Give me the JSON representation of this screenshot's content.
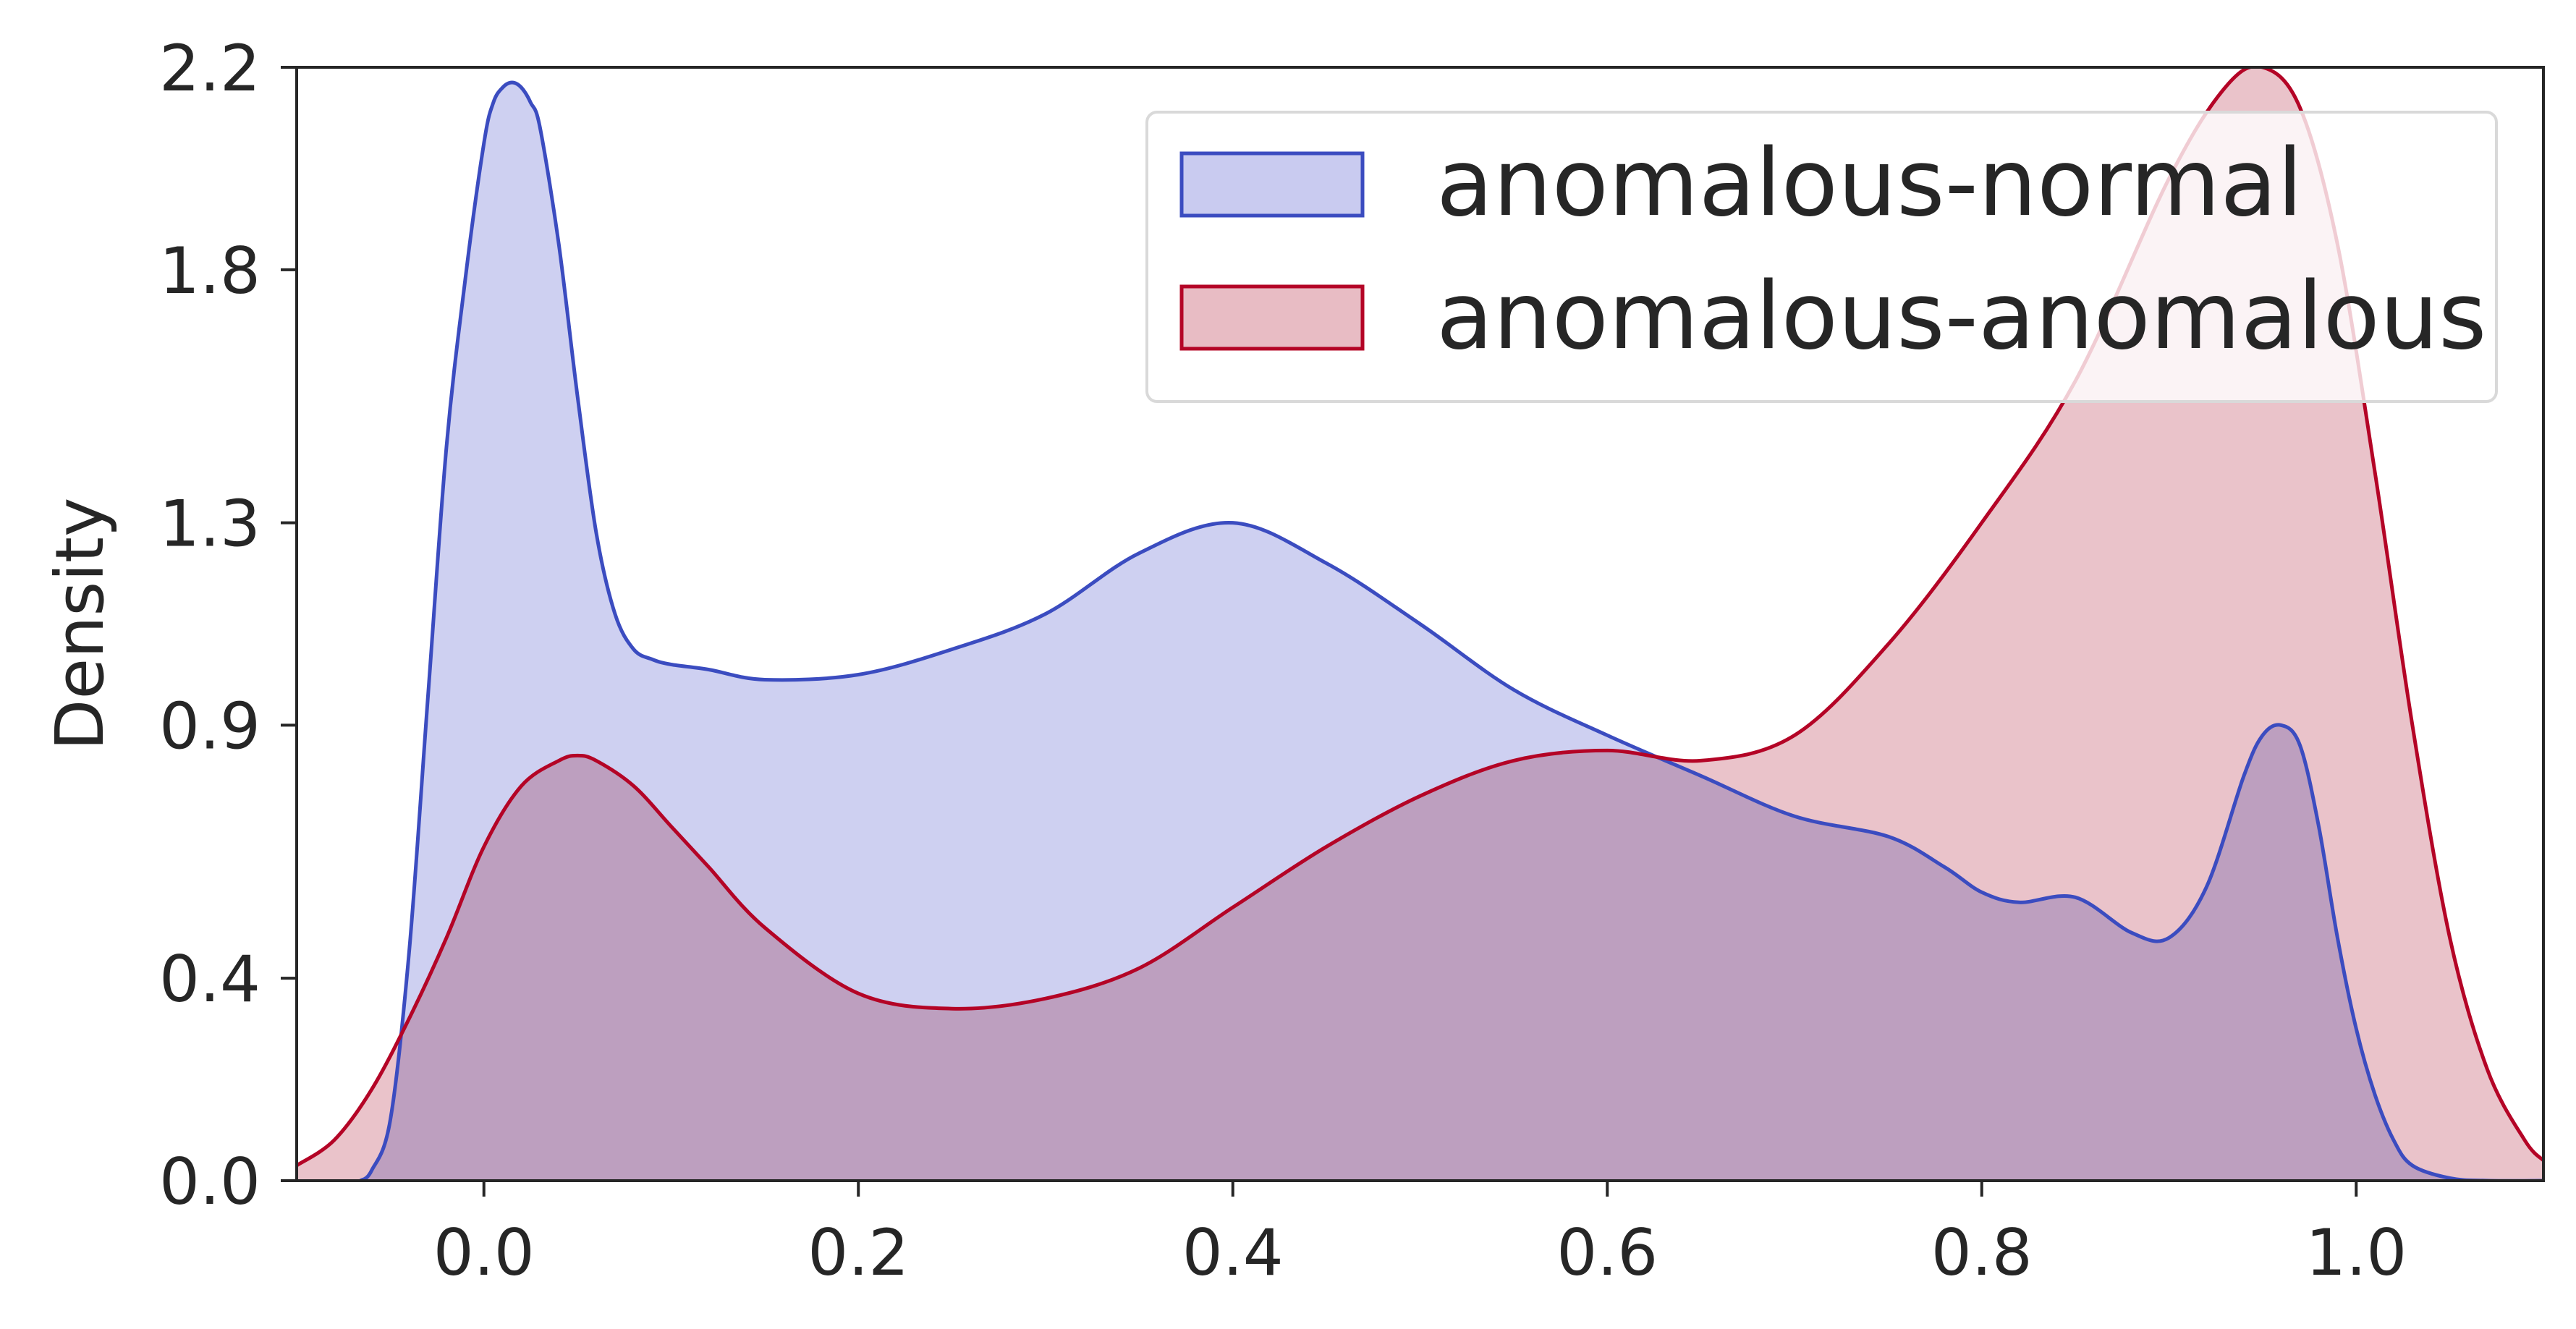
{
  "chart_data": {
    "type": "area",
    "xlabel": "",
    "ylabel": "Density",
    "xlim": [
      -0.1,
      1.1
    ],
    "ylim": [
      0.0,
      2.2
    ],
    "xticks": [
      0.0,
      0.2,
      0.4,
      0.6,
      0.8,
      1.0
    ],
    "xtick_labels": [
      "0.0",
      "0.2",
      "0.4",
      "0.6",
      "0.8",
      "1.0"
    ],
    "yticks": [
      0.0,
      0.4,
      0.9,
      1.3,
      1.8,
      2.2
    ],
    "ytick_labels": [
      "0.0",
      "0.4",
      "0.9",
      "1.3",
      "1.8",
      "2.2"
    ],
    "grid": false,
    "legend_position": "top-right",
    "series": [
      {
        "name": "anomalous-normal",
        "line_color": "#3b4cc0",
        "fill_color": "#c9cbf0",
        "fill_opacity": 0.9,
        "x": [
          -0.066,
          -0.06,
          -0.05,
          -0.04,
          -0.03,
          -0.02,
          -0.01,
          0.0,
          0.005,
          0.01,
          0.015,
          0.02,
          0.025,
          0.03,
          0.04,
          0.05,
          0.06,
          0.07,
          0.08,
          0.09,
          0.1,
          0.12,
          0.15,
          0.2,
          0.25,
          0.3,
          0.35,
          0.4,
          0.45,
          0.5,
          0.55,
          0.6,
          0.65,
          0.7,
          0.75,
          0.78,
          0.8,
          0.82,
          0.85,
          0.88,
          0.9,
          0.92,
          0.94,
          0.95,
          0.96,
          0.97,
          0.98,
          0.99,
          1.0,
          1.01,
          1.02,
          1.03,
          1.05,
          1.07,
          1.1
        ],
        "y": [
          0.0,
          0.02,
          0.12,
          0.45,
          0.95,
          1.45,
          1.78,
          2.05,
          2.13,
          2.16,
          2.17,
          2.16,
          2.13,
          2.08,
          1.85,
          1.55,
          1.28,
          1.12,
          1.05,
          1.03,
          1.02,
          1.01,
          0.99,
          1.0,
          1.05,
          1.12,
          1.24,
          1.3,
          1.22,
          1.1,
          0.97,
          0.88,
          0.8,
          0.72,
          0.68,
          0.62,
          0.57,
          0.55,
          0.56,
          0.49,
          0.48,
          0.58,
          0.8,
          0.88,
          0.9,
          0.86,
          0.7,
          0.48,
          0.3,
          0.17,
          0.08,
          0.03,
          0.005,
          0.0,
          0.0
        ]
      },
      {
        "name": "anomalous-anomalous",
        "line_color": "#b40426",
        "fill_color": "#e8bcc4",
        "fill_opacity": 0.9,
        "x": [
          -0.1,
          -0.08,
          -0.06,
          -0.04,
          -0.02,
          0.0,
          0.02,
          0.04,
          0.05,
          0.06,
          0.08,
          0.1,
          0.12,
          0.15,
          0.2,
          0.25,
          0.3,
          0.35,
          0.4,
          0.45,
          0.5,
          0.55,
          0.6,
          0.65,
          0.7,
          0.75,
          0.8,
          0.85,
          0.9,
          0.93,
          0.95,
          0.97,
          0.99,
          1.01,
          1.03,
          1.05,
          1.07,
          1.09,
          1.1
        ],
        "y": [
          0.03,
          0.08,
          0.18,
          0.32,
          0.48,
          0.66,
          0.78,
          0.83,
          0.84,
          0.83,
          0.78,
          0.7,
          0.62,
          0.5,
          0.37,
          0.34,
          0.36,
          0.42,
          0.54,
          0.66,
          0.76,
          0.83,
          0.85,
          0.83,
          0.88,
          1.06,
          1.3,
          1.58,
          1.98,
          2.16,
          2.2,
          2.12,
          1.85,
          1.4,
          0.9,
          0.48,
          0.22,
          0.08,
          0.04
        ]
      }
    ]
  }
}
